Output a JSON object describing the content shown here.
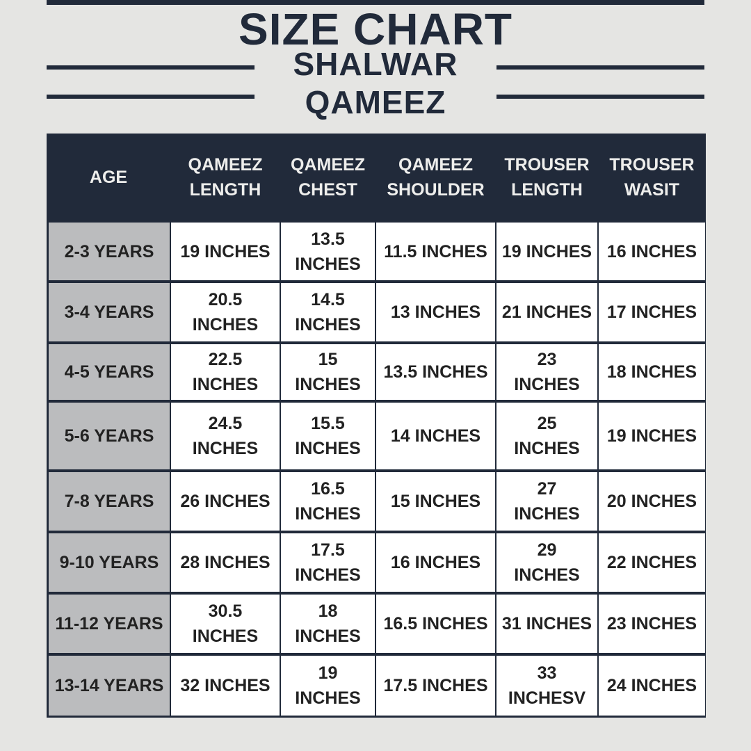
{
  "title": "SIZE CHART",
  "subtitle_line1": "SHALWAR",
  "subtitle_line2": "QAMEEZ",
  "colors": {
    "navy": "#212a3a",
    "background": "#e5e5e3",
    "age_cell": "#bbbcbe",
    "cell": "#ffffff"
  },
  "table": {
    "headers": [
      [
        "AGE"
      ],
      [
        "QAMEEZ",
        "LENGTH"
      ],
      [
        "QAMEEZ",
        "CHEST"
      ],
      [
        "QAMEEZ",
        "SHOULDER"
      ],
      [
        "TROUSER",
        "LENGTH"
      ],
      [
        "TROUSER",
        "WASIT"
      ]
    ],
    "rows": [
      [
        [
          "2-3 YEARS"
        ],
        [
          "19 INCHES"
        ],
        [
          "13.5",
          "INCHES"
        ],
        [
          "11.5 INCHES"
        ],
        [
          "19 INCHES"
        ],
        [
          "16 INCHES"
        ]
      ],
      [
        [
          "3-4 YEARS"
        ],
        [
          "20.5",
          "INCHES"
        ],
        [
          "14.5",
          "INCHES"
        ],
        [
          "13 INCHES"
        ],
        [
          "21 INCHES"
        ],
        [
          "17 INCHES"
        ]
      ],
      [
        [
          "4-5 YEARS"
        ],
        [
          "22.5",
          "INCHES"
        ],
        [
          "15",
          "INCHES"
        ],
        [
          "13.5 INCHES"
        ],
        [
          "23",
          "INCHES"
        ],
        [
          "18 INCHES"
        ]
      ],
      [
        [
          "5-6 YEARS"
        ],
        [
          "24.5",
          "INCHES"
        ],
        [
          "15.5",
          "INCHES"
        ],
        [
          "14 INCHES"
        ],
        [
          "25",
          "INCHES"
        ],
        [
          "19 INCHES"
        ]
      ],
      [
        [
          "7-8 YEARS"
        ],
        [
          "26 INCHES"
        ],
        [
          "16.5",
          "INCHES"
        ],
        [
          "15 INCHES"
        ],
        [
          "27",
          "INCHES"
        ],
        [
          "20 INCHES"
        ]
      ],
      [
        [
          "9-10 YEARS"
        ],
        [
          "28 INCHES"
        ],
        [
          "17.5",
          "INCHES"
        ],
        [
          "16 INCHES"
        ],
        [
          "29",
          "INCHES"
        ],
        [
          "22 INCHES"
        ]
      ],
      [
        [
          "11-12 YEARS"
        ],
        [
          "30.5",
          "INCHES"
        ],
        [
          "18",
          "INCHES"
        ],
        [
          "16.5 INCHES"
        ],
        [
          "31 INCHES"
        ],
        [
          "23 INCHES"
        ]
      ],
      [
        [
          "13-14 YEARS"
        ],
        [
          "32 INCHES"
        ],
        [
          "19",
          "INCHES"
        ],
        [
          "17.5 INCHES"
        ],
        [
          "33",
          "INCHESV"
        ],
        [
          "24 INCHES"
        ]
      ]
    ]
  }
}
